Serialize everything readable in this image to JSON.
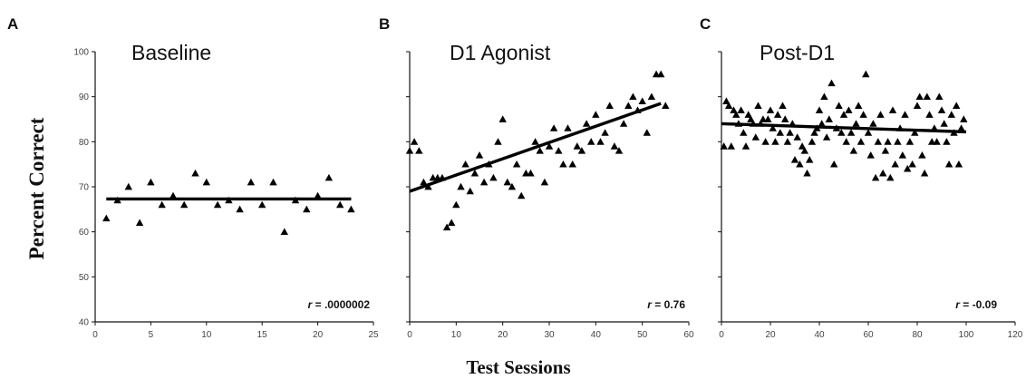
{
  "ylabel": "Percent Correct",
  "xlabel": "Test Sessions",
  "chart_data": [
    {
      "type": "scatter",
      "panel": "A",
      "title": "Baseline",
      "xlim": [
        0,
        25
      ],
      "ylim": [
        40,
        100
      ],
      "xticks": [
        0,
        5,
        10,
        15,
        20,
        25
      ],
      "yticks": [
        40,
        50,
        60,
        70,
        80,
        90,
        100
      ],
      "fit_line": {
        "x": [
          1,
          23
        ],
        "y": [
          67.3,
          67.3
        ]
      },
      "r_prefix": "r",
      "r_value": " = .0000002",
      "points": [
        [
          1,
          63
        ],
        [
          2,
          67
        ],
        [
          3,
          70
        ],
        [
          4,
          62
        ],
        [
          5,
          71
        ],
        [
          6,
          66
        ],
        [
          7,
          68
        ],
        [
          8,
          66
        ],
        [
          9,
          73
        ],
        [
          10,
          71
        ],
        [
          11,
          66
        ],
        [
          12,
          67
        ],
        [
          13,
          65
        ],
        [
          14,
          71
        ],
        [
          15,
          66
        ],
        [
          16,
          71
        ],
        [
          17,
          60
        ],
        [
          18,
          67
        ],
        [
          19,
          65
        ],
        [
          20,
          68
        ],
        [
          21,
          72
        ],
        [
          22,
          66
        ],
        [
          23,
          65
        ]
      ]
    },
    {
      "type": "scatter",
      "panel": "B",
      "title": "D1 Agonist",
      "xlim": [
        0,
        60
      ],
      "ylim": [
        40,
        100
      ],
      "xticks": [
        0,
        10,
        20,
        30,
        40,
        50,
        60
      ],
      "yticks": [
        40,
        50,
        60,
        70,
        80,
        90,
        100
      ],
      "fit_line": {
        "x": [
          0,
          54
        ],
        "y": [
          69,
          88.5
        ]
      },
      "r_prefix": "r",
      "r_value": " = 0.76",
      "points": [
        [
          0,
          78
        ],
        [
          1,
          80
        ],
        [
          2,
          78
        ],
        [
          3,
          71
        ],
        [
          4,
          70
        ],
        [
          5,
          72
        ],
        [
          6,
          72
        ],
        [
          7,
          72
        ],
        [
          8,
          61
        ],
        [
          9,
          62
        ],
        [
          10,
          66
        ],
        [
          11,
          70
        ],
        [
          12,
          75
        ],
        [
          13,
          69
        ],
        [
          14,
          73
        ],
        [
          15,
          77
        ],
        [
          16,
          71
        ],
        [
          17,
          75
        ],
        [
          18,
          72
        ],
        [
          19,
          80
        ],
        [
          20,
          85
        ],
        [
          21,
          71
        ],
        [
          22,
          70
        ],
        [
          23,
          75
        ],
        [
          24,
          68
        ],
        [
          25,
          73
        ],
        [
          26,
          73
        ],
        [
          27,
          80
        ],
        [
          28,
          78
        ],
        [
          29,
          71
        ],
        [
          30,
          79
        ],
        [
          31,
          83
        ],
        [
          32,
          78
        ],
        [
          33,
          75
        ],
        [
          34,
          83
        ],
        [
          35,
          75
        ],
        [
          36,
          79
        ],
        [
          37,
          78
        ],
        [
          38,
          84
        ],
        [
          39,
          80
        ],
        [
          40,
          86
        ],
        [
          41,
          80
        ],
        [
          42,
          82
        ],
        [
          43,
          88
        ],
        [
          44,
          79
        ],
        [
          45,
          78
        ],
        [
          46,
          84
        ],
        [
          47,
          88
        ],
        [
          48,
          90
        ],
        [
          49,
          87
        ],
        [
          50,
          89
        ],
        [
          51,
          82
        ],
        [
          52,
          90
        ],
        [
          53,
          95
        ],
        [
          54,
          95
        ],
        [
          55,
          88
        ]
      ]
    },
    {
      "type": "scatter",
      "panel": "C",
      "title": "Post-D1",
      "xlim": [
        0,
        120
      ],
      "ylim": [
        40,
        100
      ],
      "xticks": [
        0,
        20,
        40,
        60,
        80,
        100,
        120
      ],
      "yticks": [
        40,
        50,
        60,
        70,
        80,
        90,
        100
      ],
      "fit_line": {
        "x": [
          0,
          100
        ],
        "y": [
          84,
          82.2
        ]
      },
      "r_prefix": "r",
      "r_value": " = -0.09",
      "points": [
        [
          1,
          79
        ],
        [
          2,
          89
        ],
        [
          3,
          88
        ],
        [
          4,
          79
        ],
        [
          5,
          87
        ],
        [
          6,
          86
        ],
        [
          7,
          84
        ],
        [
          8,
          87
        ],
        [
          9,
          82
        ],
        [
          10,
          79
        ],
        [
          11,
          86
        ],
        [
          12,
          85
        ],
        [
          13,
          84
        ],
        [
          14,
          81
        ],
        [
          15,
          88
        ],
        [
          16,
          84
        ],
        [
          17,
          85
        ],
        [
          18,
          80
        ],
        [
          19,
          85
        ],
        [
          20,
          87
        ],
        [
          21,
          83
        ],
        [
          22,
          80
        ],
        [
          23,
          86
        ],
        [
          24,
          82
        ],
        [
          25,
          88
        ],
        [
          26,
          85
        ],
        [
          27,
          80
        ],
        [
          28,
          82
        ],
        [
          29,
          84
        ],
        [
          30,
          76
        ],
        [
          31,
          81
        ],
        [
          32,
          75
        ],
        [
          33,
          79
        ],
        [
          34,
          78
        ],
        [
          35,
          73
        ],
        [
          36,
          76
        ],
        [
          37,
          80
        ],
        [
          38,
          82
        ],
        [
          39,
          83
        ],
        [
          40,
          87
        ],
        [
          41,
          84
        ],
        [
          42,
          90
        ],
        [
          43,
          81
        ],
        [
          44,
          85
        ],
        [
          45,
          93
        ],
        [
          46,
          75
        ],
        [
          47,
          83
        ],
        [
          48,
          88
        ],
        [
          49,
          82
        ],
        [
          50,
          86
        ],
        [
          51,
          80
        ],
        [
          52,
          87
        ],
        [
          53,
          82
        ],
        [
          54,
          78
        ],
        [
          55,
          84
        ],
        [
          56,
          88
        ],
        [
          57,
          80
        ],
        [
          58,
          86
        ],
        [
          59,
          95
        ],
        [
          60,
          82
        ],
        [
          61,
          77
        ],
        [
          62,
          84
        ],
        [
          63,
          72
        ],
        [
          64,
          80
        ],
        [
          65,
          86
        ],
        [
          66,
          73
        ],
        [
          67,
          78
        ],
        [
          68,
          80
        ],
        [
          69,
          72
        ],
        [
          70,
          87
        ],
        [
          71,
          75
        ],
        [
          72,
          80
        ],
        [
          73,
          83
        ],
        [
          74,
          77
        ],
        [
          75,
          86
        ],
        [
          76,
          74
        ],
        [
          77,
          80
        ],
        [
          78,
          75
        ],
        [
          79,
          82
        ],
        [
          80,
          88
        ],
        [
          81,
          90
        ],
        [
          82,
          77
        ],
        [
          83,
          73
        ],
        [
          84,
          90
        ],
        [
          85,
          86
        ],
        [
          86,
          80
        ],
        [
          87,
          83
        ],
        [
          88,
          80
        ],
        [
          89,
          90
        ],
        [
          90,
          87
        ],
        [
          91,
          84
        ],
        [
          92,
          80
        ],
        [
          93,
          75
        ],
        [
          94,
          86
        ],
        [
          95,
          82
        ],
        [
          96,
          88
        ],
        [
          97,
          75
        ],
        [
          98,
          83
        ],
        [
          99,
          85
        ]
      ]
    }
  ]
}
